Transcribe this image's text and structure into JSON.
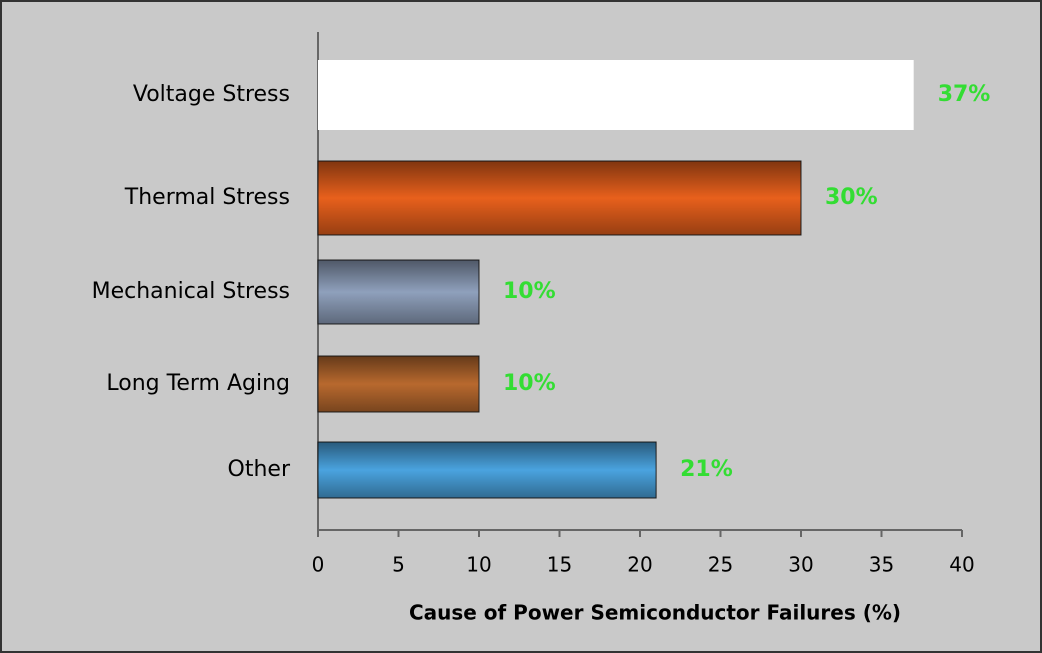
{
  "chart_data": {
    "type": "bar",
    "orientation": "horizontal",
    "categories": [
      "Voltage Stress",
      "Thermal Stress",
      "Mechanical Stress",
      "Long Term Aging",
      "Other"
    ],
    "values": [
      37,
      30,
      10,
      10,
      21
    ],
    "value_labels": [
      "37%",
      "30%",
      "10%",
      "10%",
      "21%"
    ],
    "colors": [
      "#ffffff",
      "#e8601c",
      "#8fa0bc",
      "#b8692e",
      "#4aa3df"
    ],
    "label_color": "#33dd33",
    "xlabel": "Cause of Power Semiconductor Failures (%)",
    "xlim": [
      0,
      40
    ],
    "xticks": [
      0,
      5,
      10,
      15,
      20,
      25,
      30,
      35,
      40
    ]
  }
}
